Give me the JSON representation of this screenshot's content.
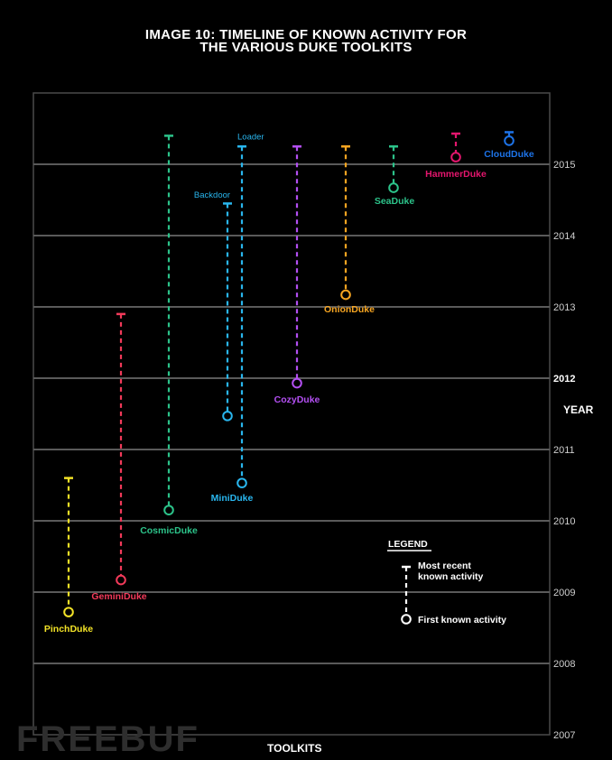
{
  "chart_data": {
    "type": "timeline",
    "title_line1": "IMAGE 10: TIMELINE OF KNOWN ACTIVITY FOR",
    "title_line2": "THE VARIOUS DUKE TOOLKITS",
    "xlabel": "TOOLKITS",
    "ylabel": "YEAR",
    "ylim": [
      2007,
      2016
    ],
    "y_ticks": [
      "2007",
      "2008",
      "2009",
      "2010",
      "2011",
      "2012",
      "2013",
      "2014",
      "2015"
    ],
    "series": [
      {
        "name": "PinchDuke",
        "first": 2008.72,
        "last": 2010.6,
        "color": "#f2e227"
      },
      {
        "name": "GeminiDuke",
        "first": 2009.17,
        "last": 2012.9,
        "color": "#f23a5a"
      },
      {
        "name": "CosmicDuke",
        "first": 2010.15,
        "last": 2015.4,
        "color": "#2cc38a"
      },
      {
        "name": "Backdoor",
        "first": 2011.47,
        "last": 2014.45,
        "color": "#29b6ee"
      },
      {
        "name": "MiniDuke",
        "first": 2010.53,
        "last": 2015.25,
        "color": "#29b6ee",
        "loader_label": "Loader"
      },
      {
        "name": "CozyDuke",
        "first": 2011.93,
        "last": 2015.25,
        "color": "#b34ff2"
      },
      {
        "name": "OnionDuke",
        "first": 2013.17,
        "last": 2015.25,
        "color": "#f7a521"
      },
      {
        "name": "SeaDuke",
        "first": 2014.67,
        "last": 2015.25,
        "color": "#2cc38a"
      },
      {
        "name": "HammerDuke",
        "first": 2015.1,
        "last": 2015.43,
        "color": "#e3166d"
      },
      {
        "name": "CloudDuke",
        "first": 2015.33,
        "last": 2015.45,
        "color": "#1d73e8"
      }
    ],
    "legend": {
      "title": "LEGEND",
      "most_recent_line1": "Most recent",
      "most_recent_line2": "known activity",
      "first_known": "First known activity"
    },
    "watermark": "FREEBUF"
  }
}
